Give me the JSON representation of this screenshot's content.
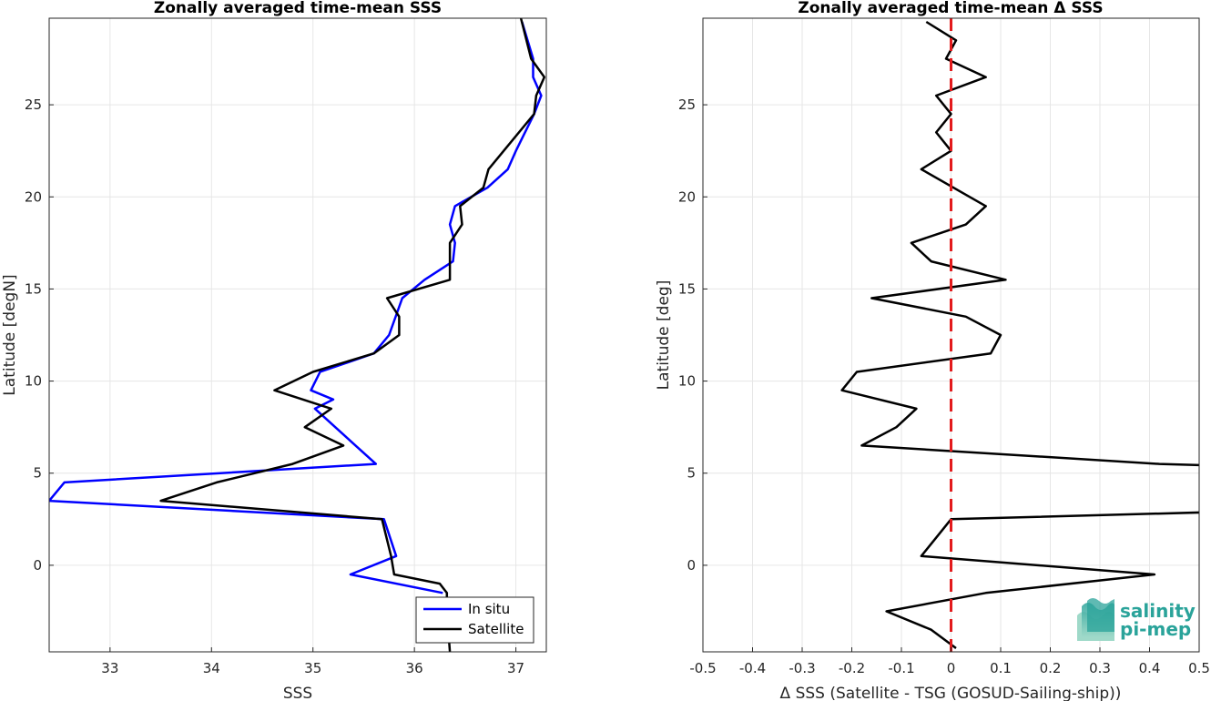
{
  "logo": {
    "line1": "salinity",
    "line2": "pi-mep",
    "color": "#2aa39a"
  },
  "chart_data": [
    {
      "type": "line",
      "title": "Zonally averaged time-mean SSS",
      "xlabel": "SSS",
      "ylabel": "Latitude [degN]",
      "xlim": [
        32.4,
        37.3
      ],
      "ylim": [
        -4.7,
        29.7
      ],
      "xticks": [
        33,
        34,
        35,
        36,
        37
      ],
      "yticks": [
        0,
        5,
        10,
        15,
        20,
        25
      ],
      "grid": true,
      "legend": {
        "placement": "bottom-right",
        "entries": [
          "In situ",
          "Satellite"
        ]
      },
      "series": [
        {
          "name": "In situ",
          "color": "#0000ff",
          "points": [
            [
              36.28,
              -1.5
            ],
            [
              35.37,
              -0.5
            ],
            [
              35.82,
              0.5
            ],
            [
              35.7,
              2.5
            ],
            [
              32.4,
              3.5
            ],
            [
              32.55,
              4.5
            ],
            [
              35.62,
              5.5
            ],
            [
              35.42,
              6.5
            ],
            [
              35.22,
              7.5
            ],
            [
              35.02,
              8.5
            ],
            [
              35.2,
              9.0
            ],
            [
              34.98,
              9.5
            ],
            [
              35.07,
              10.5
            ],
            [
              35.6,
              11.5
            ],
            [
              35.75,
              12.5
            ],
            [
              35.88,
              14.5
            ],
            [
              36.1,
              15.5
            ],
            [
              36.38,
              16.5
            ],
            [
              36.4,
              17.5
            ],
            [
              36.35,
              18.5
            ],
            [
              36.4,
              19.5
            ],
            [
              36.72,
              20.5
            ],
            [
              36.92,
              21.5
            ],
            [
              37.0,
              22.5
            ],
            [
              37.18,
              24.5
            ],
            [
              37.25,
              25.5
            ],
            [
              37.17,
              26.5
            ],
            [
              37.17,
              27.5
            ],
            [
              37.06,
              29.5
            ]
          ]
        },
        {
          "name": "Satellite",
          "color": "#000000",
          "points": [
            [
              36.35,
              -4.7
            ],
            [
              36.32,
              -2.5
            ],
            [
              36.32,
              -1.5
            ],
            [
              36.25,
              -1.0
            ],
            [
              35.8,
              -0.5
            ],
            [
              35.77,
              0.5
            ],
            [
              35.68,
              2.5
            ],
            [
              33.5,
              3.5
            ],
            [
              34.05,
              4.5
            ],
            [
              34.8,
              5.5
            ],
            [
              35.3,
              6.5
            ],
            [
              34.92,
              7.5
            ],
            [
              35.18,
              8.5
            ],
            [
              34.62,
              9.5
            ],
            [
              35.0,
              10.5
            ],
            [
              35.6,
              11.5
            ],
            [
              35.85,
              12.5
            ],
            [
              35.85,
              13.5
            ],
            [
              35.73,
              14.5
            ],
            [
              36.35,
              15.5
            ],
            [
              36.35,
              17.5
            ],
            [
              36.47,
              18.5
            ],
            [
              36.45,
              19.5
            ],
            [
              36.68,
              20.5
            ],
            [
              36.73,
              21.5
            ],
            [
              36.88,
              22.5
            ],
            [
              37.18,
              24.5
            ],
            [
              37.2,
              25.5
            ],
            [
              37.28,
              26.5
            ],
            [
              37.15,
              27.5
            ],
            [
              37.05,
              29.7
            ]
          ]
        }
      ]
    },
    {
      "type": "line",
      "title": "Zonally averaged time-mean Δ SSS",
      "xlabel": "Δ SSS (Satellite - TSG (GOSUD-Sailing-ship))",
      "ylabel": "Latitude [deg]",
      "xlim": [
        -0.5,
        0.5
      ],
      "ylim": [
        -4.7,
        29.7
      ],
      "xticks": [
        -0.5,
        -0.4,
        -0.3,
        -0.2,
        -0.1,
        0,
        0.1,
        0.2,
        0.3,
        0.4,
        0.5
      ],
      "xticklabels": [
        "-0.5",
        "-0.4",
        "-0.3",
        "-0.2",
        "-0.1",
        "0",
        "0.1",
        "0.2",
        "0.3",
        "0.4",
        "0.5"
      ],
      "yticks": [
        0,
        5,
        10,
        15,
        20,
        25
      ],
      "grid": true,
      "reference_line": {
        "x": 0,
        "style": "dashed",
        "color": "#e31a1c"
      },
      "series": [
        {
          "name": "",
          "color": "#000000",
          "points": [
            [
              0.01,
              -4.5
            ],
            [
              -0.04,
              -3.5
            ],
            [
              -0.13,
              -2.5
            ],
            [
              0.07,
              -1.5
            ],
            [
              0.41,
              -0.5
            ],
            [
              -0.06,
              0.5
            ],
            [
              -0.03,
              1.5
            ],
            [
              0.0,
              2.5
            ],
            [
              0.55,
              2.9
            ],
            [
              0.55,
              5.4
            ],
            [
              0.42,
              5.5
            ],
            [
              -0.18,
              6.5
            ],
            [
              -0.11,
              7.5
            ],
            [
              -0.07,
              8.5
            ],
            [
              -0.22,
              9.5
            ],
            [
              -0.19,
              10.5
            ],
            [
              0.08,
              11.5
            ],
            [
              0.1,
              12.5
            ],
            [
              0.03,
              13.5
            ],
            [
              -0.16,
              14.5
            ],
            [
              0.11,
              15.5
            ],
            [
              -0.04,
              16.5
            ],
            [
              -0.08,
              17.5
            ],
            [
              0.03,
              18.5
            ],
            [
              0.07,
              19.5
            ],
            [
              -0.06,
              21.5
            ],
            [
              0.0,
              22.5
            ],
            [
              -0.03,
              23.5
            ],
            [
              0.0,
              24.5
            ],
            [
              -0.03,
              25.5
            ],
            [
              0.07,
              26.5
            ],
            [
              -0.01,
              27.5
            ],
            [
              0.01,
              28.5
            ],
            [
              -0.05,
              29.5
            ]
          ]
        }
      ]
    }
  ]
}
